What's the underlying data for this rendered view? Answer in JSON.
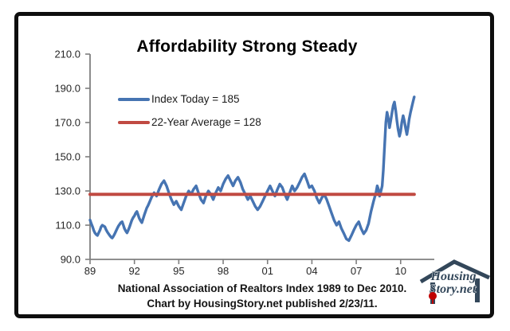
{
  "colors": {
    "index_line": "#4674b2",
    "average_line": "#c04a42",
    "axis": "#7f7f7f",
    "tick_text": "#262626",
    "border": "#0e0e0e",
    "logo_main": "#33475a",
    "logo_accent": "#c00000"
  },
  "footnotes": {
    "line1": "National Association of Realtors Index 1989 to Dec 2010.",
    "line2": "Chart by HousingStory.net published 2/23/11."
  },
  "logo": {
    "line1": "Housing",
    "line2": "Story.net"
  },
  "chart_data": {
    "type": "line",
    "title": "Affordability Strong Steady",
    "xlabel": "",
    "ylabel": "",
    "grid": false,
    "legend_position": "upper-left",
    "x_axis": {
      "tick_years": [
        1989,
        1992,
        1995,
        1998,
        2001,
        2004,
        2007,
        2010
      ],
      "tick_labels": [
        "89",
        "92",
        "95",
        "98",
        "01",
        "04",
        "07",
        "10"
      ],
      "range": [
        1989,
        2012.3
      ]
    },
    "y_axis": {
      "tick_values": [
        90,
        110,
        130,
        150,
        170,
        190,
        210
      ],
      "tick_labels": [
        "90.0",
        "110.0",
        "130.0",
        "150.0",
        "170.0",
        "190.0",
        "210.0"
      ],
      "range": [
        90,
        210
      ]
    },
    "series": [
      {
        "name": "Index Today = 185",
        "type": "line",
        "color": "#4674b2",
        "points": [
          [
            1989.0,
            113
          ],
          [
            1989.08,
            111
          ],
          [
            1989.17,
            109
          ],
          [
            1989.25,
            107
          ],
          [
            1989.33,
            105.5
          ],
          [
            1989.42,
            104.5
          ],
          [
            1989.5,
            104
          ],
          [
            1989.58,
            105.5
          ],
          [
            1989.67,
            107
          ],
          [
            1989.75,
            109
          ],
          [
            1989.83,
            110
          ],
          [
            1989.92,
            109.5
          ],
          [
            1990.0,
            109
          ],
          [
            1990.08,
            107.5
          ],
          [
            1990.17,
            106
          ],
          [
            1990.25,
            105
          ],
          [
            1990.33,
            104
          ],
          [
            1990.42,
            103
          ],
          [
            1990.5,
            102.5
          ],
          [
            1990.58,
            103.5
          ],
          [
            1990.67,
            105
          ],
          [
            1990.75,
            106.5
          ],
          [
            1990.83,
            108
          ],
          [
            1990.92,
            109.5
          ],
          [
            1991.0,
            110.5
          ],
          [
            1991.08,
            111.5
          ],
          [
            1991.17,
            112
          ],
          [
            1991.25,
            110
          ],
          [
            1991.33,
            108
          ],
          [
            1991.42,
            106.5
          ],
          [
            1991.5,
            105.5
          ],
          [
            1991.58,
            107
          ],
          [
            1991.67,
            109
          ],
          [
            1991.75,
            111
          ],
          [
            1991.83,
            113
          ],
          [
            1991.92,
            114.5
          ],
          [
            1992.0,
            115.5
          ],
          [
            1992.08,
            117
          ],
          [
            1992.17,
            118
          ],
          [
            1992.25,
            116
          ],
          [
            1992.33,
            114
          ],
          [
            1992.42,
            112.5
          ],
          [
            1992.5,
            111.5
          ],
          [
            1992.58,
            113.5
          ],
          [
            1992.67,
            116
          ],
          [
            1992.75,
            118
          ],
          [
            1992.83,
            120
          ],
          [
            1992.92,
            121.5
          ],
          [
            1993.0,
            123
          ],
          [
            1993.17,
            126.5
          ],
          [
            1993.33,
            129
          ],
          [
            1993.5,
            127
          ],
          [
            1993.67,
            131
          ],
          [
            1993.83,
            134
          ],
          [
            1994.0,
            136
          ],
          [
            1994.17,
            133
          ],
          [
            1994.33,
            129
          ],
          [
            1994.5,
            125
          ],
          [
            1994.67,
            122
          ],
          [
            1994.83,
            124
          ],
          [
            1995.0,
            121
          ],
          [
            1995.17,
            119
          ],
          [
            1995.33,
            123
          ],
          [
            1995.5,
            127
          ],
          [
            1995.67,
            130
          ],
          [
            1995.83,
            128
          ],
          [
            1996.0,
            131
          ],
          [
            1996.17,
            133
          ],
          [
            1996.33,
            129
          ],
          [
            1996.5,
            125
          ],
          [
            1996.67,
            123
          ],
          [
            1996.83,
            127
          ],
          [
            1997.0,
            130
          ],
          [
            1997.17,
            128
          ],
          [
            1997.33,
            125
          ],
          [
            1997.5,
            129
          ],
          [
            1997.67,
            132
          ],
          [
            1997.83,
            130
          ],
          [
            1998.0,
            134
          ],
          [
            1998.17,
            137
          ],
          [
            1998.33,
            139
          ],
          [
            1998.5,
            136
          ],
          [
            1998.67,
            133
          ],
          [
            1998.83,
            136
          ],
          [
            1999.0,
            138
          ],
          [
            1999.17,
            135
          ],
          [
            1999.33,
            131
          ],
          [
            1999.5,
            128
          ],
          [
            1999.67,
            125
          ],
          [
            1999.83,
            127
          ],
          [
            2000.0,
            124
          ],
          [
            2000.17,
            121
          ],
          [
            2000.33,
            119
          ],
          [
            2000.5,
            121
          ],
          [
            2000.67,
            124
          ],
          [
            2000.83,
            127
          ],
          [
            2001.0,
            130
          ],
          [
            2001.17,
            133
          ],
          [
            2001.33,
            130
          ],
          [
            2001.5,
            127
          ],
          [
            2001.67,
            131
          ],
          [
            2001.83,
            134
          ],
          [
            2002.0,
            132
          ],
          [
            2002.17,
            128
          ],
          [
            2002.33,
            125
          ],
          [
            2002.5,
            129
          ],
          [
            2002.67,
            133
          ],
          [
            2002.83,
            130
          ],
          [
            2003.0,
            132
          ],
          [
            2003.17,
            135
          ],
          [
            2003.33,
            138
          ],
          [
            2003.5,
            140
          ],
          [
            2003.67,
            136
          ],
          [
            2003.83,
            132
          ],
          [
            2004.0,
            133
          ],
          [
            2004.17,
            130
          ],
          [
            2004.33,
            126
          ],
          [
            2004.5,
            123
          ],
          [
            2004.67,
            126
          ],
          [
            2004.83,
            128
          ],
          [
            2005.0,
            125
          ],
          [
            2005.17,
            121
          ],
          [
            2005.33,
            117
          ],
          [
            2005.5,
            113
          ],
          [
            2005.67,
            110
          ],
          [
            2005.83,
            112
          ],
          [
            2006.0,
            108
          ],
          [
            2006.17,
            105
          ],
          [
            2006.33,
            102
          ],
          [
            2006.5,
            101
          ],
          [
            2006.67,
            104
          ],
          [
            2006.83,
            107
          ],
          [
            2007.0,
            110
          ],
          [
            2007.17,
            112
          ],
          [
            2007.33,
            108
          ],
          [
            2007.5,
            105
          ],
          [
            2007.67,
            107
          ],
          [
            2007.83,
            111
          ],
          [
            2008.0,
            118
          ],
          [
            2008.17,
            124
          ],
          [
            2008.33,
            129
          ],
          [
            2008.42,
            133
          ],
          [
            2008.5,
            131
          ],
          [
            2008.58,
            127
          ],
          [
            2008.67,
            130
          ],
          [
            2008.75,
            133
          ],
          [
            2008.83,
            142
          ],
          [
            2008.92,
            157
          ],
          [
            2009.0,
            170
          ],
          [
            2009.08,
            176
          ],
          [
            2009.17,
            172
          ],
          [
            2009.25,
            167
          ],
          [
            2009.33,
            171
          ],
          [
            2009.42,
            176
          ],
          [
            2009.5,
            180
          ],
          [
            2009.58,
            182
          ],
          [
            2009.67,
            177
          ],
          [
            2009.75,
            171
          ],
          [
            2009.83,
            166
          ],
          [
            2009.92,
            162
          ],
          [
            2010.0,
            165
          ],
          [
            2010.08,
            170
          ],
          [
            2010.17,
            174
          ],
          [
            2010.25,
            171
          ],
          [
            2010.33,
            167
          ],
          [
            2010.42,
            163
          ],
          [
            2010.5,
            167
          ],
          [
            2010.58,
            172
          ],
          [
            2010.67,
            176
          ],
          [
            2010.75,
            179
          ],
          [
            2010.83,
            182
          ],
          [
            2010.92,
            185
          ]
        ]
      },
      {
        "name": "22-Year Average = 128",
        "type": "hline",
        "color": "#c04a42",
        "value": 128,
        "x_start": 1989.0,
        "x_end": 2010.92
      }
    ]
  }
}
